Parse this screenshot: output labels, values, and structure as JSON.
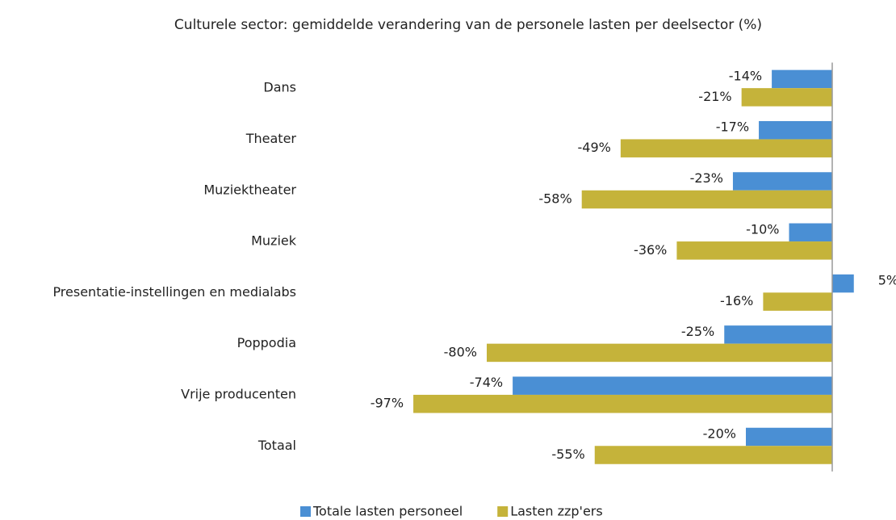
{
  "chart_data": {
    "type": "hbar",
    "title": "Culturele sector: gemiddelde verandering van de personele lasten per deelsector (%)",
    "categories": [
      "Dans",
      "Theater",
      "Muziektheater",
      "Muziek",
      "Presentatie-instellingen en medialabs",
      "Poppodia",
      "Vrije producenten",
      "Totaal"
    ],
    "series": [
      {
        "name": "Totale lasten personeel",
        "color": "#4a8fd4",
        "values": [
          -14,
          -17,
          -23,
          -10,
          5,
          -25,
          -74,
          -20
        ],
        "value_labels": [
          "-14%",
          "-17%",
          "-23%",
          "-10%",
          "5%",
          "-25%",
          "-74%",
          "-20%"
        ]
      },
      {
        "name": "Lasten zzp'ers",
        "color": "#c5b33a",
        "values": [
          -21,
          -49,
          -58,
          -36,
          -16,
          -80,
          -97,
          -55
        ],
        "value_labels": [
          "-21%",
          "-49%",
          "-58%",
          "-36%",
          "-16%",
          "-80%",
          "-97%",
          "-55%"
        ]
      }
    ],
    "xlim": [
      -100,
      10
    ],
    "legend": "bottom"
  }
}
